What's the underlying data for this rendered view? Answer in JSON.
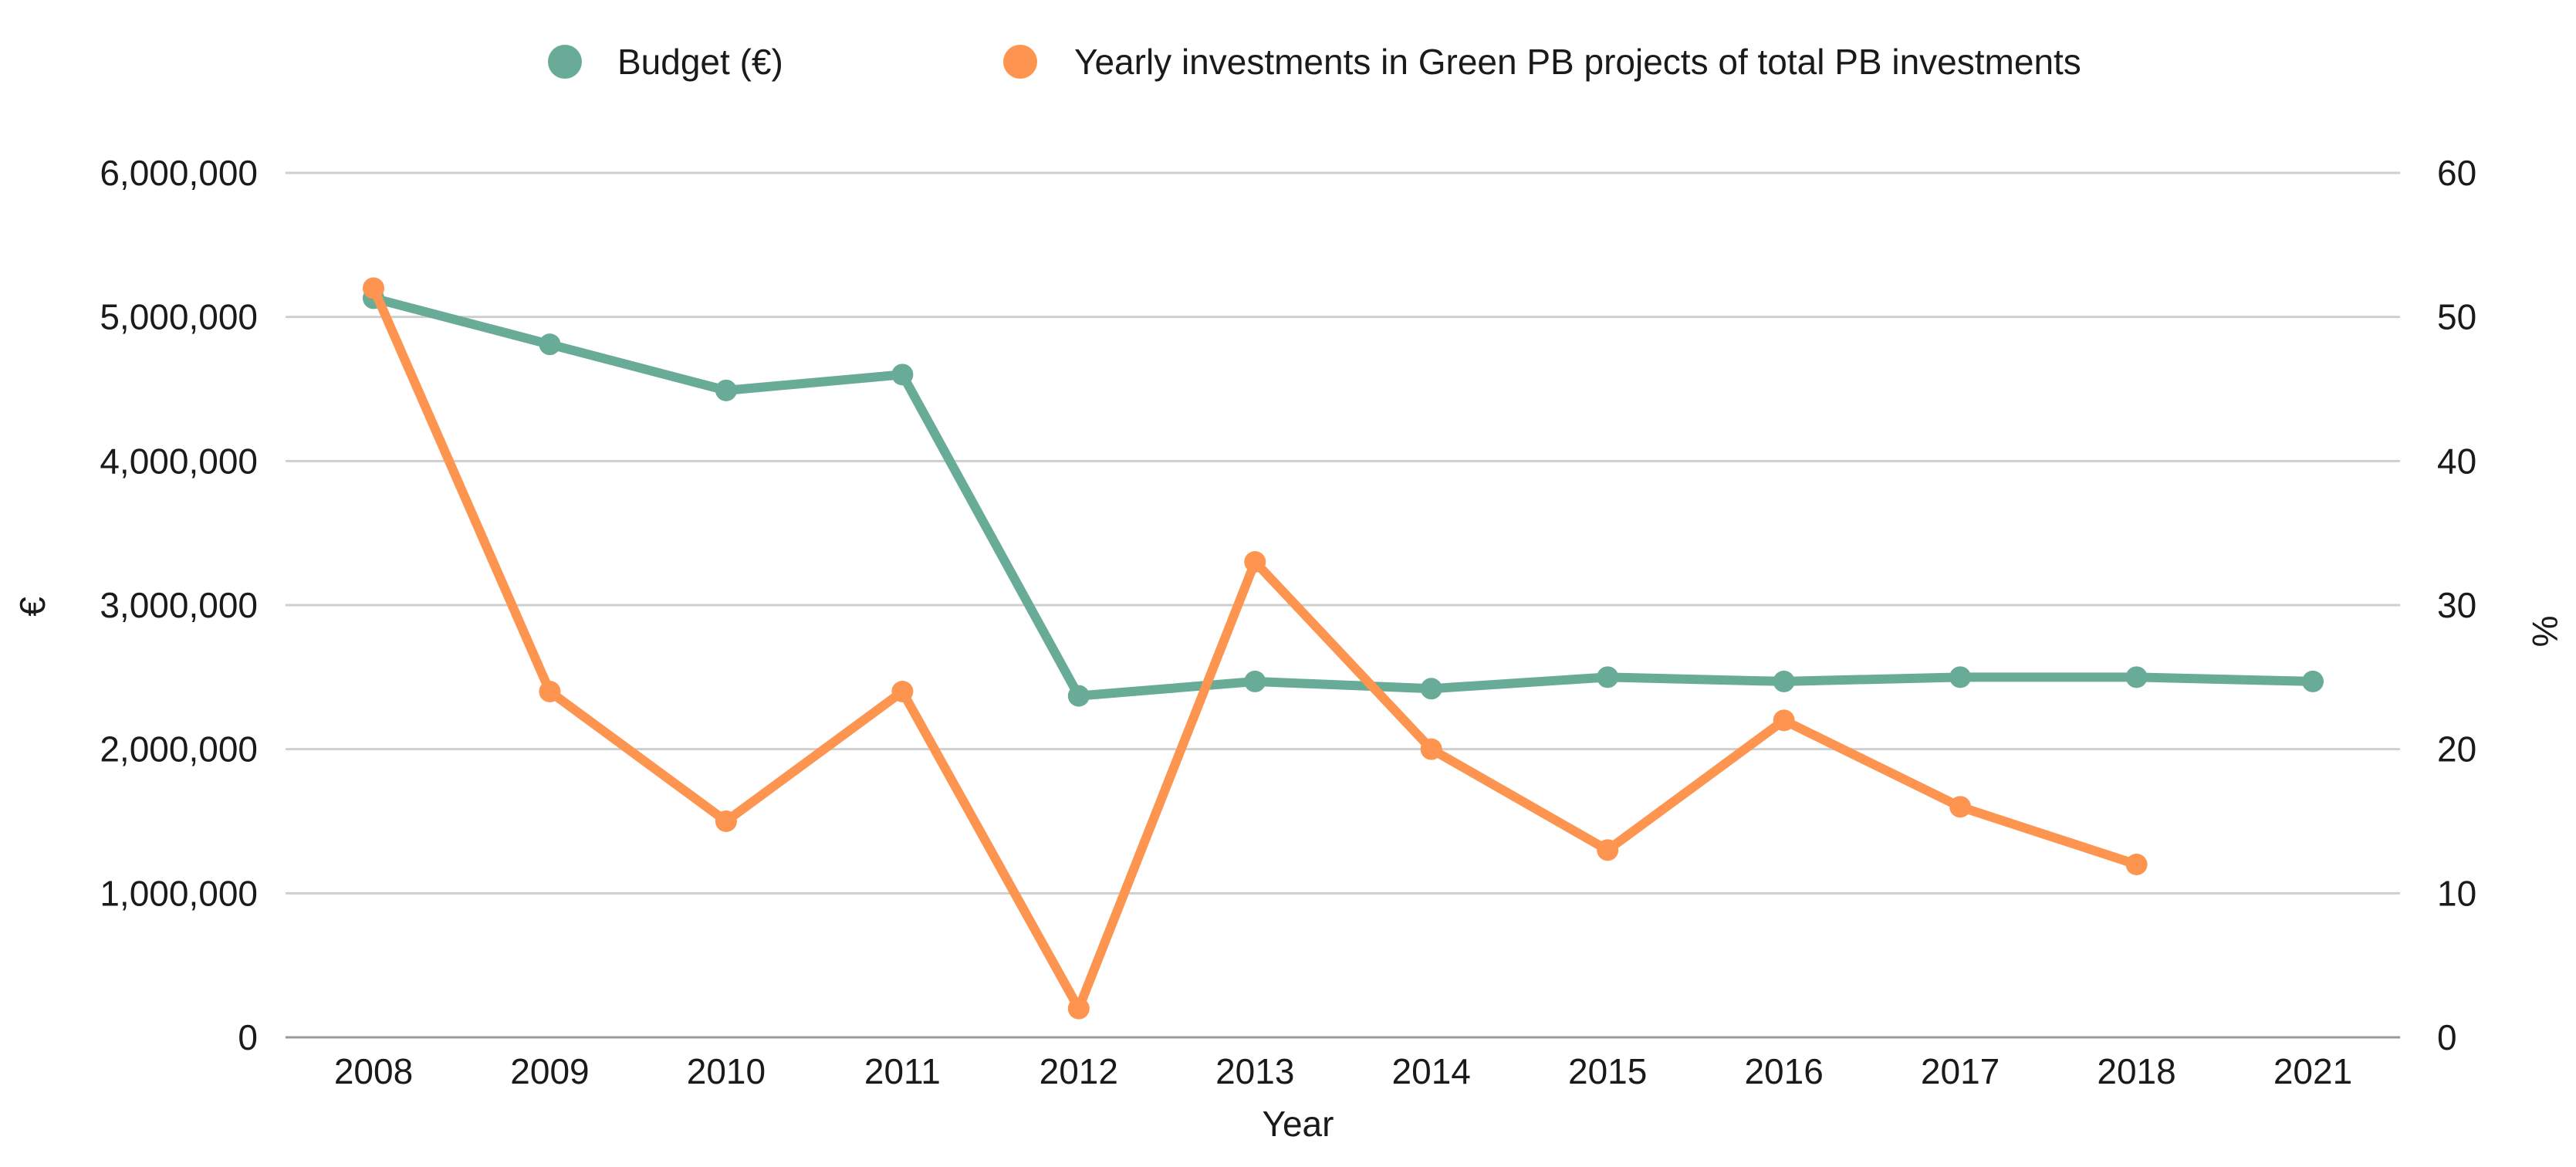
{
  "chart_data": {
    "type": "line",
    "title": "",
    "categories": [
      "2008",
      "2009",
      "2010",
      "2011",
      "2012",
      "2013",
      "2014",
      "2015",
      "2016",
      "2017",
      "2018",
      "2021"
    ],
    "xlabel": "Year",
    "ylabel": "€",
    "y2label": "%",
    "ylim": [
      0,
      6000000
    ],
    "y2lim": [
      0,
      60
    ],
    "yticks": [
      0,
      1000000,
      2000000,
      3000000,
      4000000,
      5000000,
      6000000
    ],
    "ytick_labels": [
      "0",
      "1,000,000",
      "2,000,000",
      "3,000,000",
      "4,000,000",
      "5,000,000",
      "6,000,000"
    ],
    "y2ticks": [
      0,
      10,
      20,
      30,
      40,
      50,
      60
    ],
    "y2tick_labels": [
      "0",
      "10",
      "20",
      "30",
      "40",
      "50",
      "60"
    ],
    "grid": true,
    "legend": "top-center",
    "series": [
      {
        "name": "Budget (€)",
        "axis": "left",
        "color": "#68ab97",
        "values": [
          5130000,
          4810000,
          4490000,
          4600000,
          2370000,
          2470000,
          2420000,
          2500000,
          2470000,
          2500000,
          2500000,
          2470000
        ]
      },
      {
        "name": "Yearly investments in Green PB projects of total PB investments",
        "axis": "right",
        "color": "#fd9550",
        "values": [
          52,
          24,
          15,
          24,
          2,
          33,
          20,
          13,
          22,
          16,
          12,
          null
        ]
      }
    ]
  }
}
